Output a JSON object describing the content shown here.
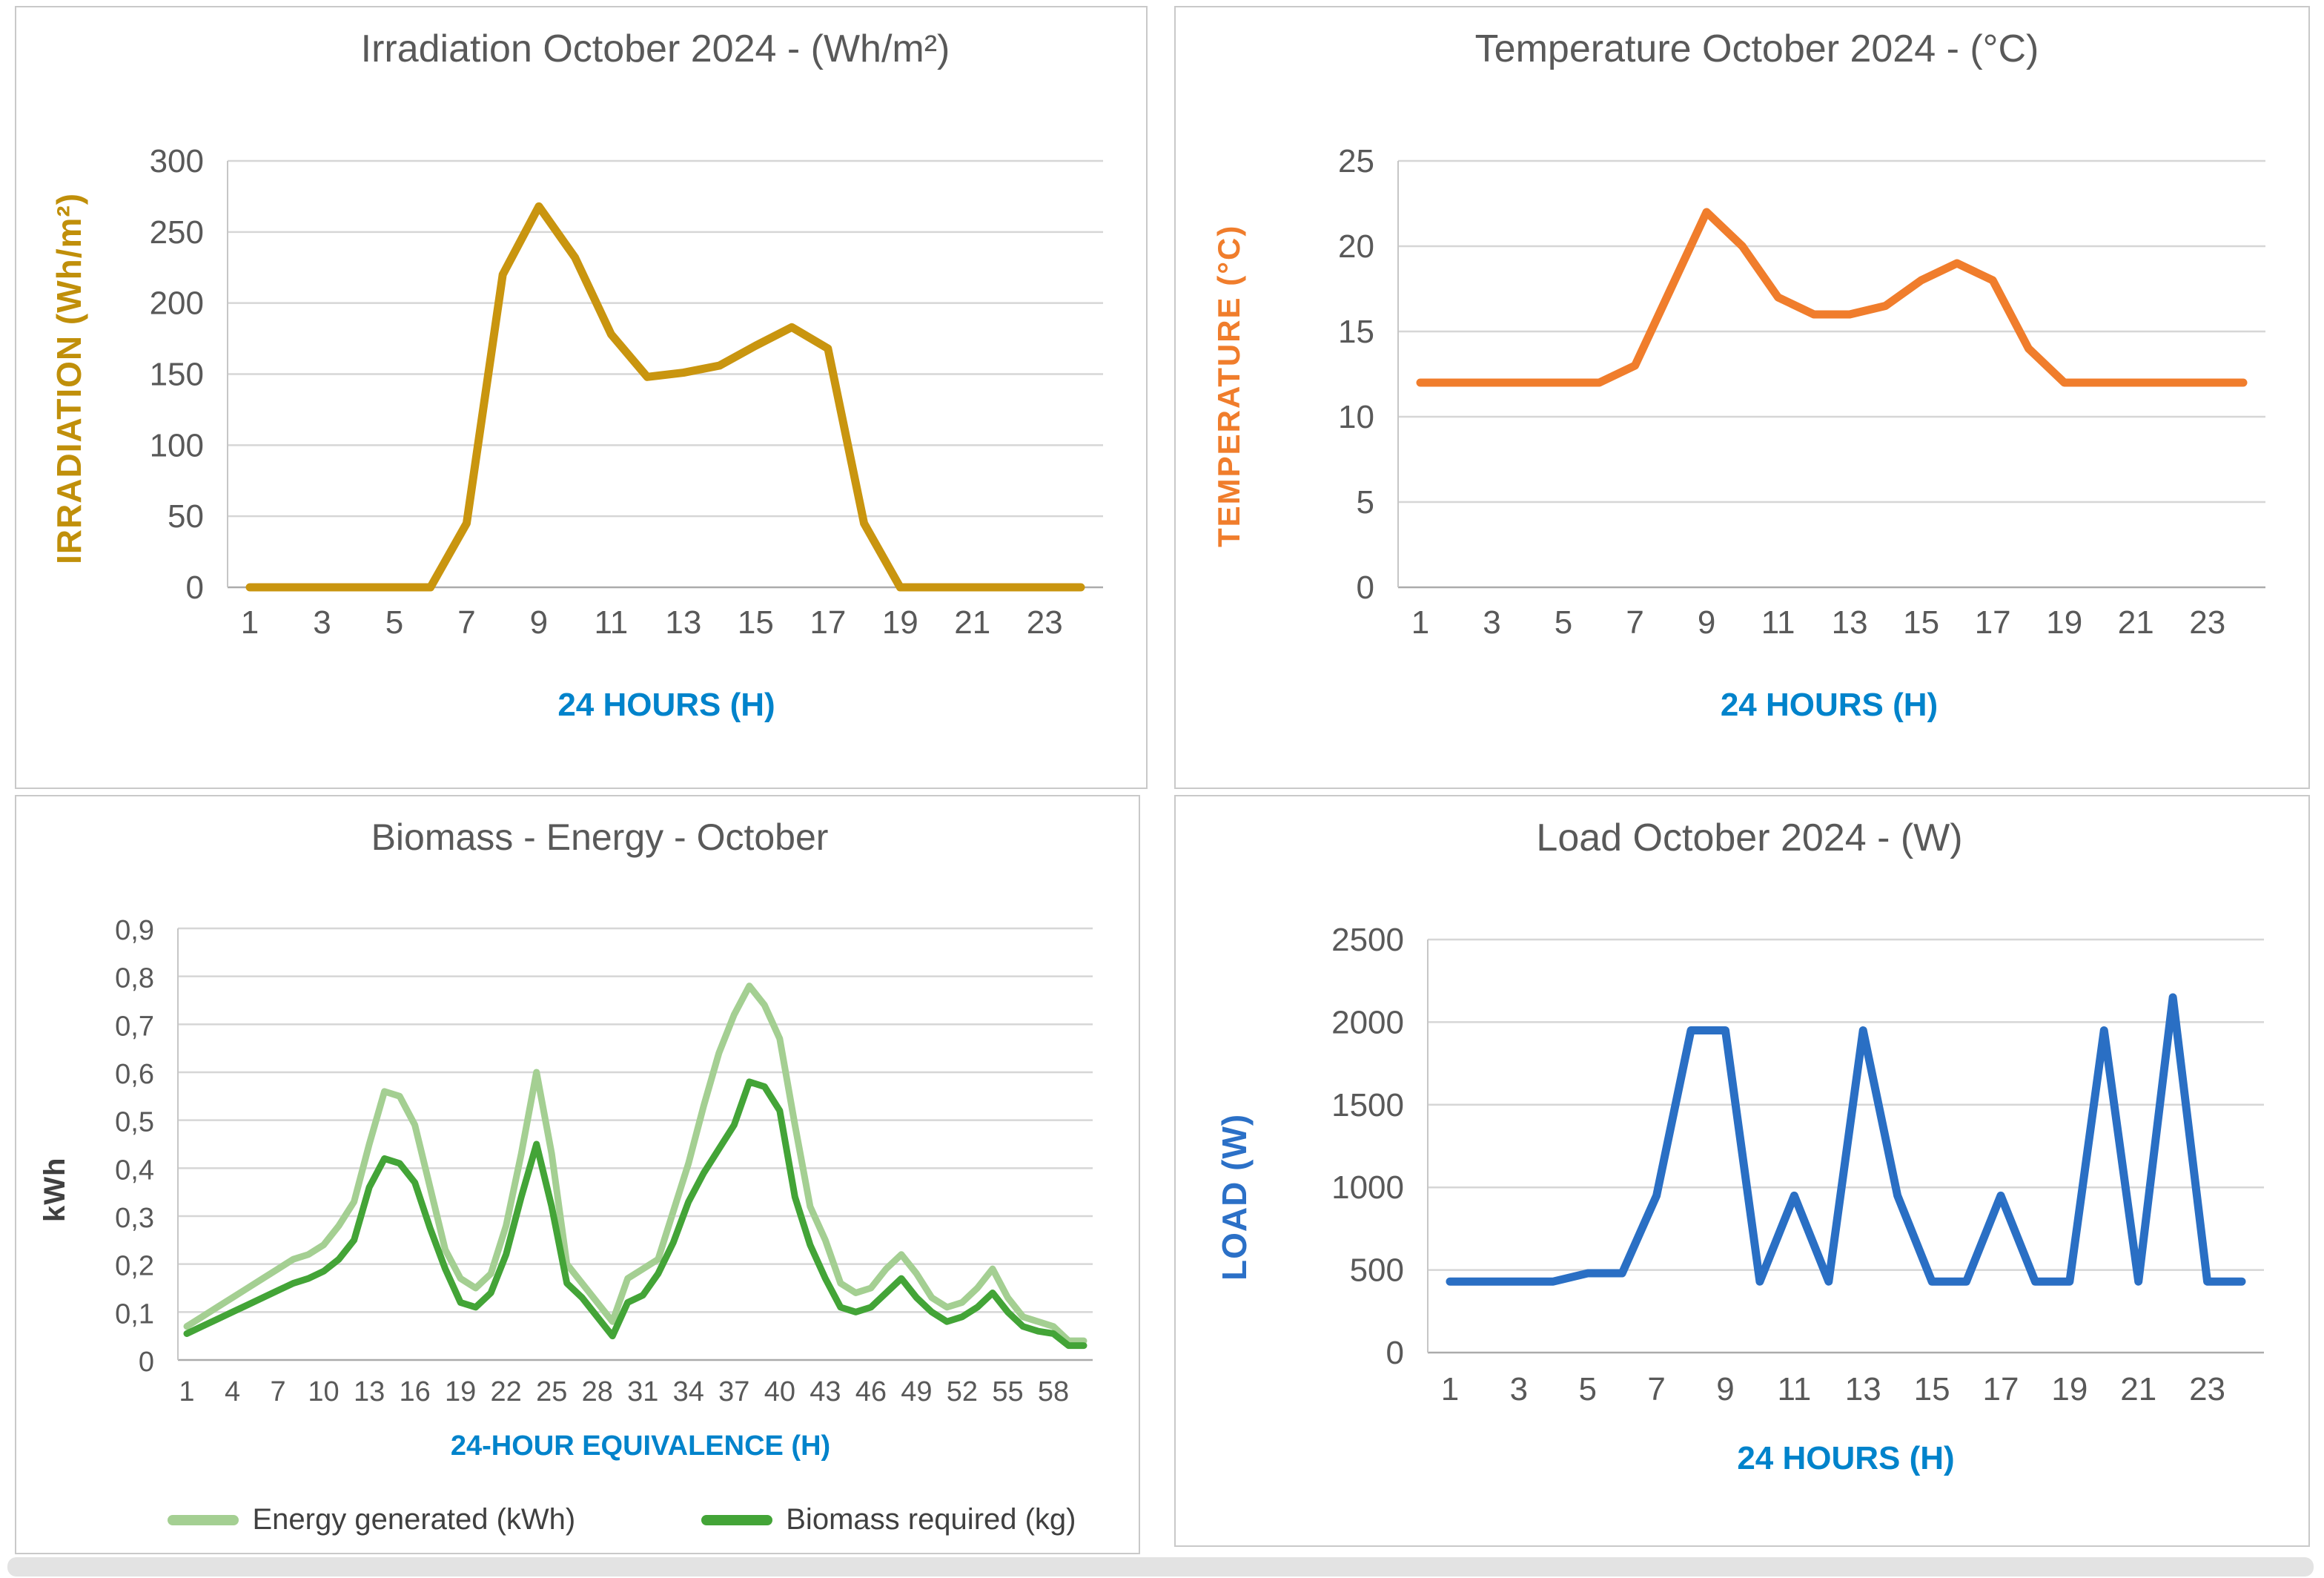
{
  "chart_data": [
    {
      "id": "irradiation",
      "type": "line",
      "title": "Irradiation October 2024 - (Wh/m²)",
      "xlabel": "24 HOURS (H)",
      "ylabel": "IRRADIATION (Wh/m²)",
      "title_color": "#595959",
      "xlabel_color": "#0083CB",
      "ylabel_color": "#C08F0A",
      "tick_color": "#595959",
      "grid_color": "#D6D6D6",
      "zero_line_color": "#ABABAB",
      "x_range": [
        1,
        24
      ],
      "xticks": [
        1,
        3,
        5,
        7,
        9,
        11,
        13,
        15,
        17,
        19,
        21,
        23
      ],
      "ylim": [
        0,
        300
      ],
      "yticks": [
        0,
        50,
        100,
        150,
        200,
        250,
        300
      ],
      "ytick_labels": [
        "0",
        "50",
        "100",
        "150",
        "200",
        "250",
        "300"
      ],
      "legend_position": "none",
      "grid": true,
      "series": [
        {
          "name": "Irradiation (Wh/m²)",
          "color": "#C9950F",
          "values": [
            0,
            0,
            0,
            0,
            0,
            0,
            45,
            220,
            268,
            232,
            178,
            148,
            151,
            156,
            170,
            183,
            168,
            45,
            0,
            0,
            0,
            0,
            0,
            0
          ]
        }
      ]
    },
    {
      "id": "temperature",
      "type": "line",
      "title": "Temperature October 2024 - (°C)",
      "xlabel": "24 HOURS (H)",
      "ylabel": "TEMPERATURE (°C)",
      "title_color": "#595959",
      "xlabel_color": "#0083CB",
      "ylabel_color": "#F07D2C",
      "tick_color": "#595959",
      "grid_color": "#D6D6D6",
      "zero_line_color": "#ABABAB",
      "x_range": [
        1,
        24
      ],
      "xticks": [
        1,
        3,
        5,
        7,
        9,
        11,
        13,
        15,
        17,
        19,
        21,
        23
      ],
      "ylim": [
        0,
        25
      ],
      "yticks": [
        0,
        5,
        10,
        15,
        20,
        25
      ],
      "ytick_labels": [
        "0",
        "5",
        "10",
        "15",
        "20",
        "25"
      ],
      "legend_position": "none",
      "grid": true,
      "series": [
        {
          "name": "Temperature (°C)",
          "color": "#F07D2C",
          "values": [
            12,
            12,
            12,
            12,
            12,
            12,
            13,
            17.5,
            22,
            20,
            17,
            16,
            16,
            16.5,
            18,
            19,
            18,
            14,
            12,
            12,
            12,
            12,
            12,
            12
          ]
        }
      ]
    },
    {
      "id": "biomass",
      "type": "line",
      "title": "Biomass - Energy - October",
      "xlabel": "24-HOUR EQUIVALENCE (H)",
      "ylabel": "kWh",
      "title_color": "#595959",
      "xlabel_color": "#0083CB",
      "ylabel_color": "#404040",
      "tick_color": "#595959",
      "grid_color": "#D6D6D6",
      "zero_line_color": "#ABABAB",
      "x_range": [
        1,
        60
      ],
      "xticks": [
        1,
        4,
        7,
        10,
        13,
        16,
        19,
        22,
        25,
        28,
        31,
        34,
        37,
        40,
        43,
        46,
        49,
        52,
        55,
        58
      ],
      "ylim": [
        0,
        0.9
      ],
      "yticks": [
        0,
        0.1,
        0.2,
        0.3,
        0.4,
        0.5,
        0.6,
        0.7,
        0.8,
        0.9
      ],
      "ytick_labels": [
        "0",
        "0,1",
        "0,2",
        "0,3",
        "0,4",
        "0,5",
        "0,6",
        "0,7",
        "0,8",
        "0,9"
      ],
      "legend_position": "bottom",
      "grid": true,
      "series": [
        {
          "name": "Energy generated (kWh)",
          "color": "#A4CF92",
          "values": [
            0.07,
            0.09,
            0.11,
            0.13,
            0.15,
            0.17,
            0.19,
            0.21,
            0.22,
            0.24,
            0.28,
            0.33,
            0.45,
            0.56,
            0.55,
            0.49,
            0.36,
            0.23,
            0.17,
            0.15,
            0.18,
            0.28,
            0.43,
            0.6,
            0.43,
            0.2,
            0.16,
            0.12,
            0.08,
            0.17,
            0.19,
            0.21,
            0.31,
            0.41,
            0.53,
            0.64,
            0.72,
            0.78,
            0.74,
            0.67,
            0.49,
            0.32,
            0.25,
            0.16,
            0.14,
            0.15,
            0.19,
            0.22,
            0.18,
            0.13,
            0.11,
            0.12,
            0.15,
            0.19,
            0.13,
            0.09,
            0.08,
            0.07,
            0.04,
            0.04
          ]
        },
        {
          "name": "Biomass required (kg)",
          "color": "#43A437",
          "values": [
            0.055,
            0.07,
            0.085,
            0.1,
            0.115,
            0.13,
            0.145,
            0.16,
            0.17,
            0.185,
            0.21,
            0.25,
            0.36,
            0.42,
            0.41,
            0.37,
            0.275,
            0.19,
            0.12,
            0.11,
            0.14,
            0.22,
            0.34,
            0.45,
            0.32,
            0.16,
            0.13,
            0.09,
            0.05,
            0.12,
            0.135,
            0.18,
            0.245,
            0.33,
            0.39,
            0.44,
            0.49,
            0.58,
            0.57,
            0.52,
            0.34,
            0.24,
            0.17,
            0.11,
            0.1,
            0.11,
            0.14,
            0.17,
            0.13,
            0.1,
            0.08,
            0.09,
            0.11,
            0.14,
            0.1,
            0.07,
            0.06,
            0.055,
            0.03,
            0.03
          ]
        }
      ]
    },
    {
      "id": "load",
      "type": "line",
      "title": "Load October 2024 - (W)",
      "xlabel": "24 HOURS (H)",
      "ylabel": "LOAD (W)",
      "title_color": "#595959",
      "xlabel_color": "#0083CB",
      "ylabel_color": "#2B70C7",
      "tick_color": "#595959",
      "grid_color": "#D6D6D6",
      "zero_line_color": "#ABABAB",
      "x_range": [
        1,
        24
      ],
      "xticks": [
        1,
        3,
        5,
        7,
        9,
        11,
        13,
        15,
        17,
        19,
        21,
        23
      ],
      "ylim": [
        0,
        2500
      ],
      "yticks": [
        0,
        500,
        1000,
        1500,
        2000,
        2500
      ],
      "ytick_labels": [
        "0",
        "500",
        "1000",
        "1500",
        "2000",
        "2500"
      ],
      "legend_position": "none",
      "grid": true,
      "series": [
        {
          "name": "Load (W)",
          "color": "#2A6FC4",
          "values": [
            430,
            430,
            430,
            430,
            480,
            480,
            950,
            1950,
            1950,
            430,
            950,
            430,
            1950,
            950,
            430,
            430,
            950,
            430,
            430,
            1950,
            430,
            2150,
            430,
            430
          ]
        }
      ]
    }
  ]
}
